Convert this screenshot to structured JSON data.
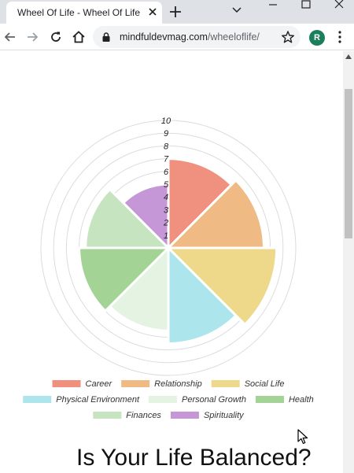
{
  "browser": {
    "tab_title": "Wheel Of Life - Wheel Of Life",
    "url_host": "mindfuldevmag.com",
    "url_path": "/wheeloflife/",
    "profile_initial": "R"
  },
  "page": {
    "heading": "Is Your Life Balanced?"
  },
  "colors": {
    "Career": "#f0907f",
    "Relationship": "#f0ba85",
    "Social Life": "#eed98a",
    "Physical Environment": "#ace5ec",
    "Personal Growth": "#e5f3e3",
    "Health": "#a3d395",
    "Finances": "#c5e4bf",
    "Spirituality": "#c597d6"
  },
  "chart_data": {
    "type": "polar-area",
    "r_range": [
      0,
      10
    ],
    "r_ticks": [
      "1",
      "2",
      "3",
      "4",
      "5",
      "6",
      "7",
      "8",
      "9",
      "10"
    ],
    "grid": true,
    "legend_position": "bottom",
    "categories": [
      "Career",
      "Relationship",
      "Social Life",
      "Physical Environment",
      "Personal Growth",
      "Health",
      "Finances",
      "Spirituality"
    ],
    "values": [
      7,
      7.5,
      8.5,
      7.5,
      6.5,
      7,
      6.5,
      5
    ]
  }
}
